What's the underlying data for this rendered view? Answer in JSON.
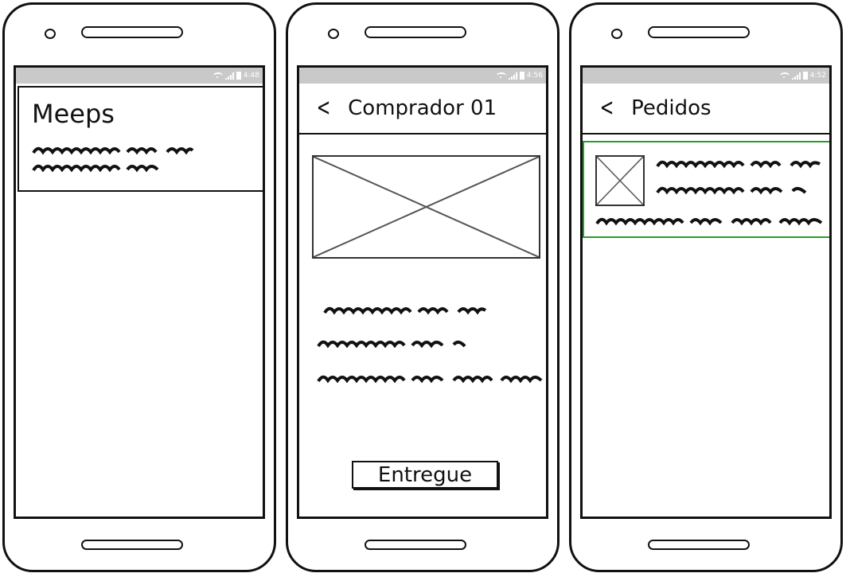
{
  "screens": [
    {
      "status_time": "4:48",
      "card_title": "Meeps"
    },
    {
      "status_time": "4:56",
      "header_title": "Comprador 01",
      "back_glyph": "<",
      "deliver_button": "Entregue"
    },
    {
      "status_time": "4:52",
      "header_title": "Pedidos",
      "back_glyph": "<"
    }
  ],
  "colors": {
    "status_bar": "#c9c9c9",
    "selected_border": "#2d9a2d",
    "ink": "#111111"
  },
  "icons": [
    "wifi-icon",
    "signal-icon",
    "battery-icon",
    "back-icon",
    "image-placeholder-icon"
  ]
}
